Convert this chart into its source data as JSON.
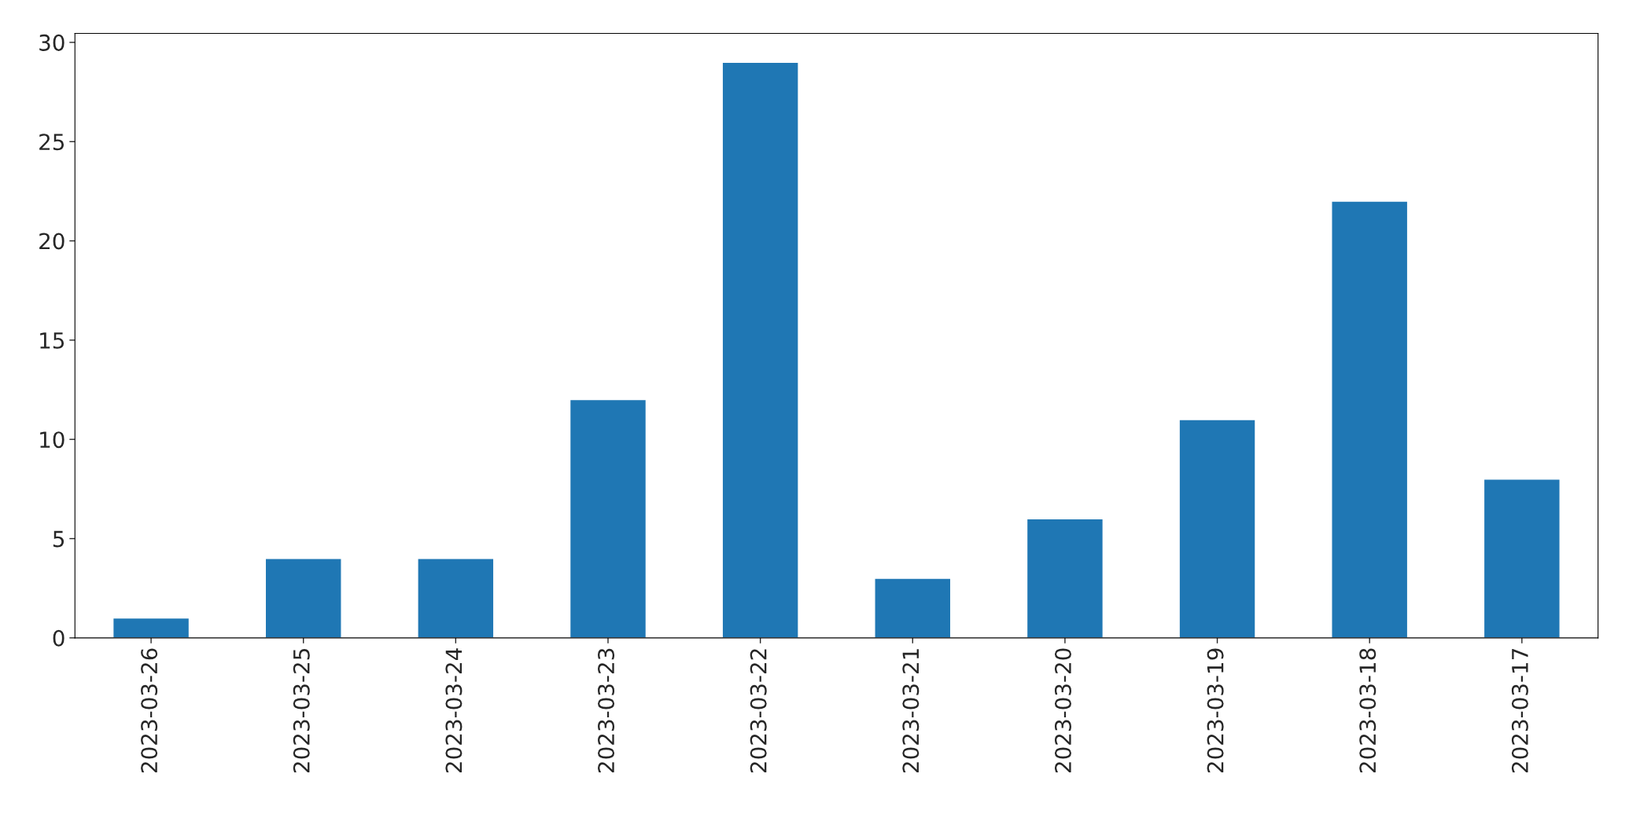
{
  "chart_data": {
    "type": "bar",
    "categories": [
      "2023-03-26",
      "2023-03-25",
      "2023-03-24",
      "2023-03-23",
      "2023-03-22",
      "2023-03-21",
      "2023-03-20",
      "2023-03-19",
      "2023-03-18",
      "2023-03-17"
    ],
    "values": [
      1,
      4,
      4,
      12,
      29,
      3,
      6,
      11,
      22,
      8
    ],
    "color": "#1f77b4",
    "ylim": [
      0,
      30.45
    ],
    "yticks": [
      0,
      5,
      10,
      15,
      20,
      25,
      30
    ],
    "grid": false,
    "legend": false
  }
}
